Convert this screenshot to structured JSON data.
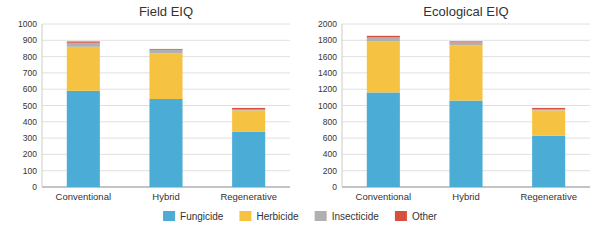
{
  "chart_data": [
    {
      "type": "bar",
      "stacked": true,
      "title": "Field EIQ",
      "categories": [
        "Conventional",
        "Hybrid",
        "Regenerative"
      ],
      "series": [
        {
          "name": "Fungicide",
          "color": "#4BACD6",
          "values": [
            590,
            540,
            340
          ]
        },
        {
          "name": "Herbicide",
          "color": "#F5C242",
          "values": [
            270,
            280,
            130
          ]
        },
        {
          "name": "Insecticide",
          "color": "#B0B0B0",
          "values": [
            25,
            22,
            5
          ]
        },
        {
          "name": "Other",
          "color": "#D94F3D",
          "values": [
            8,
            5,
            10
          ]
        }
      ],
      "ylim": [
        0,
        1000
      ],
      "yticks": [
        0,
        100,
        200,
        300,
        400,
        500,
        600,
        700,
        800,
        900,
        1000
      ],
      "grid": true,
      "legend": "bottom"
    },
    {
      "type": "bar",
      "stacked": true,
      "title": "Ecological EIQ",
      "categories": [
        "Conventional",
        "Hybrid",
        "Regenerative"
      ],
      "series": [
        {
          "name": "Fungicide",
          "color": "#4BACD6",
          "values": [
            1160,
            1060,
            630
          ]
        },
        {
          "name": "Herbicide",
          "color": "#F5C242",
          "values": [
            630,
            680,
            310
          ]
        },
        {
          "name": "Insecticide",
          "color": "#B0B0B0",
          "values": [
            45,
            35,
            12
          ]
        },
        {
          "name": "Other",
          "color": "#D94F3D",
          "values": [
            20,
            12,
            18
          ]
        }
      ],
      "ylim": [
        0,
        2000
      ],
      "yticks": [
        0,
        200,
        400,
        600,
        800,
        1000,
        1200,
        1400,
        1600,
        1800,
        2000
      ],
      "grid": true
    }
  ]
}
